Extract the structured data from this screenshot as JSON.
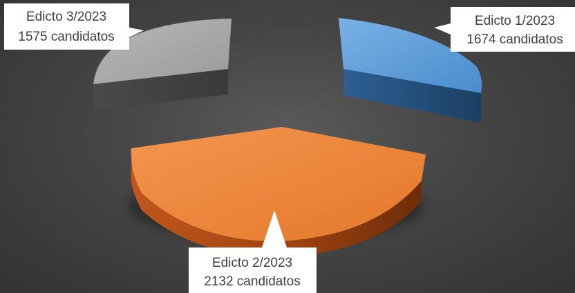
{
  "chart_data": {
    "type": "pie",
    "style": "3d-exploded",
    "title": "",
    "legend": "none",
    "slices": [
      {
        "label": "Edicto 1/2023",
        "value": 1674,
        "value_text": "1674 candidatos",
        "color": "#5b9bd5"
      },
      {
        "label": "Edicto 2/2023",
        "value": 2132,
        "value_text": "2132 candidatos",
        "color": "#ed7d31"
      },
      {
        "label": "Edicto 3/2023",
        "value": 1575,
        "value_text": "1575 candidatos",
        "color": "#a5a5a5"
      }
    ]
  }
}
